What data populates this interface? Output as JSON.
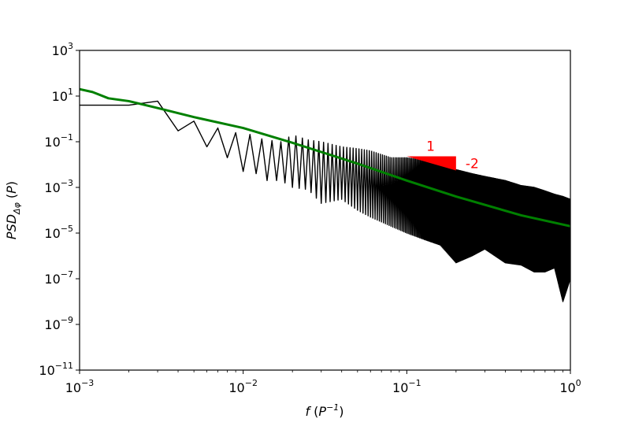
{
  "chart_data": {
    "type": "line",
    "title": "",
    "xlabel": "f (P^-1)",
    "ylabel": "PSD_Δφ (P)",
    "xscale": "log",
    "yscale": "log",
    "xlim": [
      0.001,
      1
    ],
    "ylim": [
      1e-11,
      1000
    ],
    "x_ticks": [
      {
        "value": 0.001,
        "base": "10",
        "exp": "−3"
      },
      {
        "value": 0.01,
        "base": "10",
        "exp": "−2"
      },
      {
        "value": 0.1,
        "base": "10",
        "exp": "−1"
      },
      {
        "value": 1,
        "base": "10",
        "exp": "0"
      }
    ],
    "y_ticks": [
      {
        "value": 1e-11,
        "base": "10",
        "exp": "−11"
      },
      {
        "value": 1e-09,
        "base": "10",
        "exp": "−9"
      },
      {
        "value": 1e-07,
        "base": "10",
        "exp": "−7"
      },
      {
        "value": 1e-05,
        "base": "10",
        "exp": "−5"
      },
      {
        "value": 0.001,
        "base": "10",
        "exp": "−3"
      },
      {
        "value": 0.1,
        "base": "10",
        "exp": "−1"
      },
      {
        "value": 10,
        "base": "10",
        "exp": "1"
      },
      {
        "value": 1000,
        "base": "10",
        "exp": "3"
      }
    ],
    "grid": false,
    "legend": "none",
    "series": [
      {
        "color": "#000000",
        "style": "raw noisy periodogram",
        "x": [
          0.001,
          0.0011,
          0.0012,
          0.00135,
          0.0015,
          0.0016,
          0.0018,
          0.002,
          0.0022,
          0.0024,
          0.0025,
          0.0027,
          0.0028,
          0.003,
          0.0032,
          0.0034,
          0.0035,
          0.0037,
          0.004,
          0.0042,
          0.0045,
          0.005,
          0.0055,
          0.006,
          0.0065,
          0.007,
          0.0075,
          0.008,
          0.009,
          0.01,
          0.012,
          0.014,
          0.017,
          0.02,
          0.025,
          0.03,
          0.04,
          0.05,
          0.06,
          0.08,
          0.1,
          0.13,
          0.16,
          0.2,
          0.25,
          0.3,
          0.4,
          0.5,
          0.6,
          0.7,
          0.8,
          0.9,
          1.0
        ],
        "y_upper": [
          4,
          1.3,
          4,
          3,
          12,
          2,
          2,
          4,
          0.3,
          5,
          1,
          0.08,
          2,
          6,
          0.1,
          3,
          0.3,
          2,
          0.3,
          2,
          0.4,
          0.8,
          0.5,
          0.6,
          0.5,
          0.4,
          0.3,
          0.25,
          0.25,
          0.3,
          0.15,
          0.12,
          0.1,
          0.2,
          0.12,
          0.1,
          0.06,
          0.05,
          0.04,
          0.02,
          0.02,
          0.015,
          0.01,
          0.006,
          0.004,
          0.003,
          0.002,
          0.0012,
          0.001,
          0.0007,
          0.0005,
          0.0004,
          0.0003
        ],
        "y_lower": [
          4,
          1.3,
          4,
          3,
          12,
          2,
          2,
          4,
          0.3,
          5,
          1,
          0.08,
          2,
          6,
          0.1,
          3,
          0.3,
          2,
          0.3,
          2,
          0.08,
          0.1,
          0.05,
          0.06,
          0.05,
          0.04,
          0.03,
          0.02,
          0.01,
          0.005,
          0.004,
          0.002,
          0.002,
          0.001,
          0.0008,
          0.0002,
          0.0003,
          0.0001,
          5e-05,
          2e-05,
          1e-05,
          5e-06,
          3e-06,
          5e-07,
          1e-06,
          2e-06,
          5e-07,
          4e-07,
          2e-07,
          2e-07,
          3e-07,
          1e-08,
          1e-07
        ]
      },
      {
        "color": "#008000",
        "style": "smoothed spectrum",
        "x": [
          0.001,
          0.0012,
          0.0015,
          0.002,
          0.003,
          0.005,
          0.01,
          0.02,
          0.05,
          0.1,
          0.2,
          0.5,
          1.0
        ],
        "y": [
          20,
          15,
          8,
          6,
          3,
          1.2,
          0.4,
          0.09,
          0.011,
          0.002,
          0.0004,
          6e-05,
          2e-05
        ]
      }
    ],
    "annotations": [
      {
        "type": "slope-triangle",
        "color": "#ff0000",
        "x0": 0.1,
        "x1": 0.2,
        "y_top": 0.023,
        "y_bottom": 0.0055,
        "run_label": "1",
        "rise_label": "-2"
      }
    ]
  }
}
